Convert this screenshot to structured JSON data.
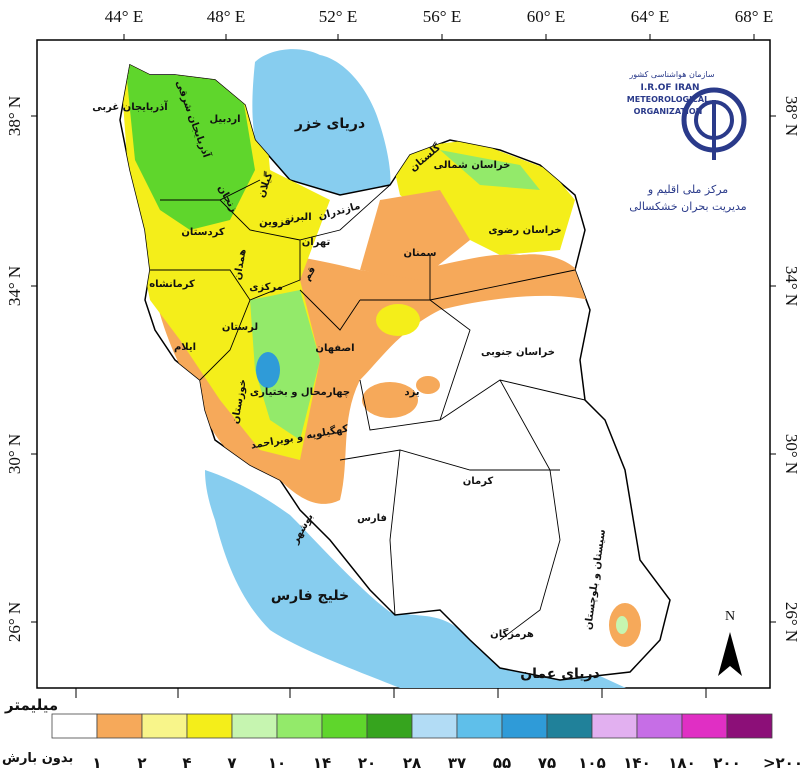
{
  "map": {
    "lon_labels": [
      "44° E",
      "48° E",
      "52° E",
      "56° E",
      "60° E",
      "64° E",
      "68° E"
    ],
    "lat_labels": [
      "38° N",
      "34° N",
      "30° N",
      "26° N"
    ],
    "seas": [
      "دریای خزر",
      "خلیج فارس",
      "دریای عمان"
    ],
    "provinces": [
      "آذربایجان غربی",
      "آذربایجان شرقی",
      "اردبیل",
      "زنجان",
      "گیلان",
      "مازندران",
      "گلستان",
      "خراسان شمالی",
      "خراسان رضوی",
      "سمنان",
      "تهران",
      "البرز",
      "قزوین",
      "قم",
      "مرکزی",
      "همدان",
      "کردستان",
      "کرمانشاه",
      "لرستان",
      "ایلام",
      "خوزستان",
      "اصفهان",
      "چهارمحال و بختیاری",
      "کهگیلویه و بویراحمد",
      "بوشهر",
      "فارس",
      "یزد",
      "خراسان جنوبی",
      "کرمان",
      "هرمزگان",
      "سیستان و بلوچستان"
    ],
    "north": "N",
    "logo": {
      "org_fa": "سازمان هواشناسی کشور",
      "line1": "I.R.OF IRAN",
      "line2": "METEOROLOGICAL",
      "line3": "ORGANIZATION",
      "center1": "مرکز ملی اقلیم و",
      "center2": "مدیریت بحران خشکسالی"
    },
    "legend": {
      "unit": "میلیمتر",
      "no_rain": "بدون بارش",
      "colors": [
        "#ffffff",
        "#f6a95a",
        "#f8f58a",
        "#f4ee1a",
        "#c6f5b0",
        "#93ea6a",
        "#5fd62c",
        "#36a41e",
        "#b2dcf5",
        "#5fbfea",
        "#2f9bd8",
        "#20819a",
        "#e2b0f0",
        "#c66ee6",
        "#e02fc4",
        "#8c0f78"
      ],
      "labels": [
        "۱",
        "۲",
        "۴",
        "۷",
        "۱۰",
        "۱۴",
        "۲۰",
        "۲۸",
        "۳۷",
        "۵۵",
        "۷۵",
        "۱۰۵",
        "۱۴۰",
        "۱۸۰",
        "۲۰۰",
        ">۲۰۰"
      ]
    }
  }
}
